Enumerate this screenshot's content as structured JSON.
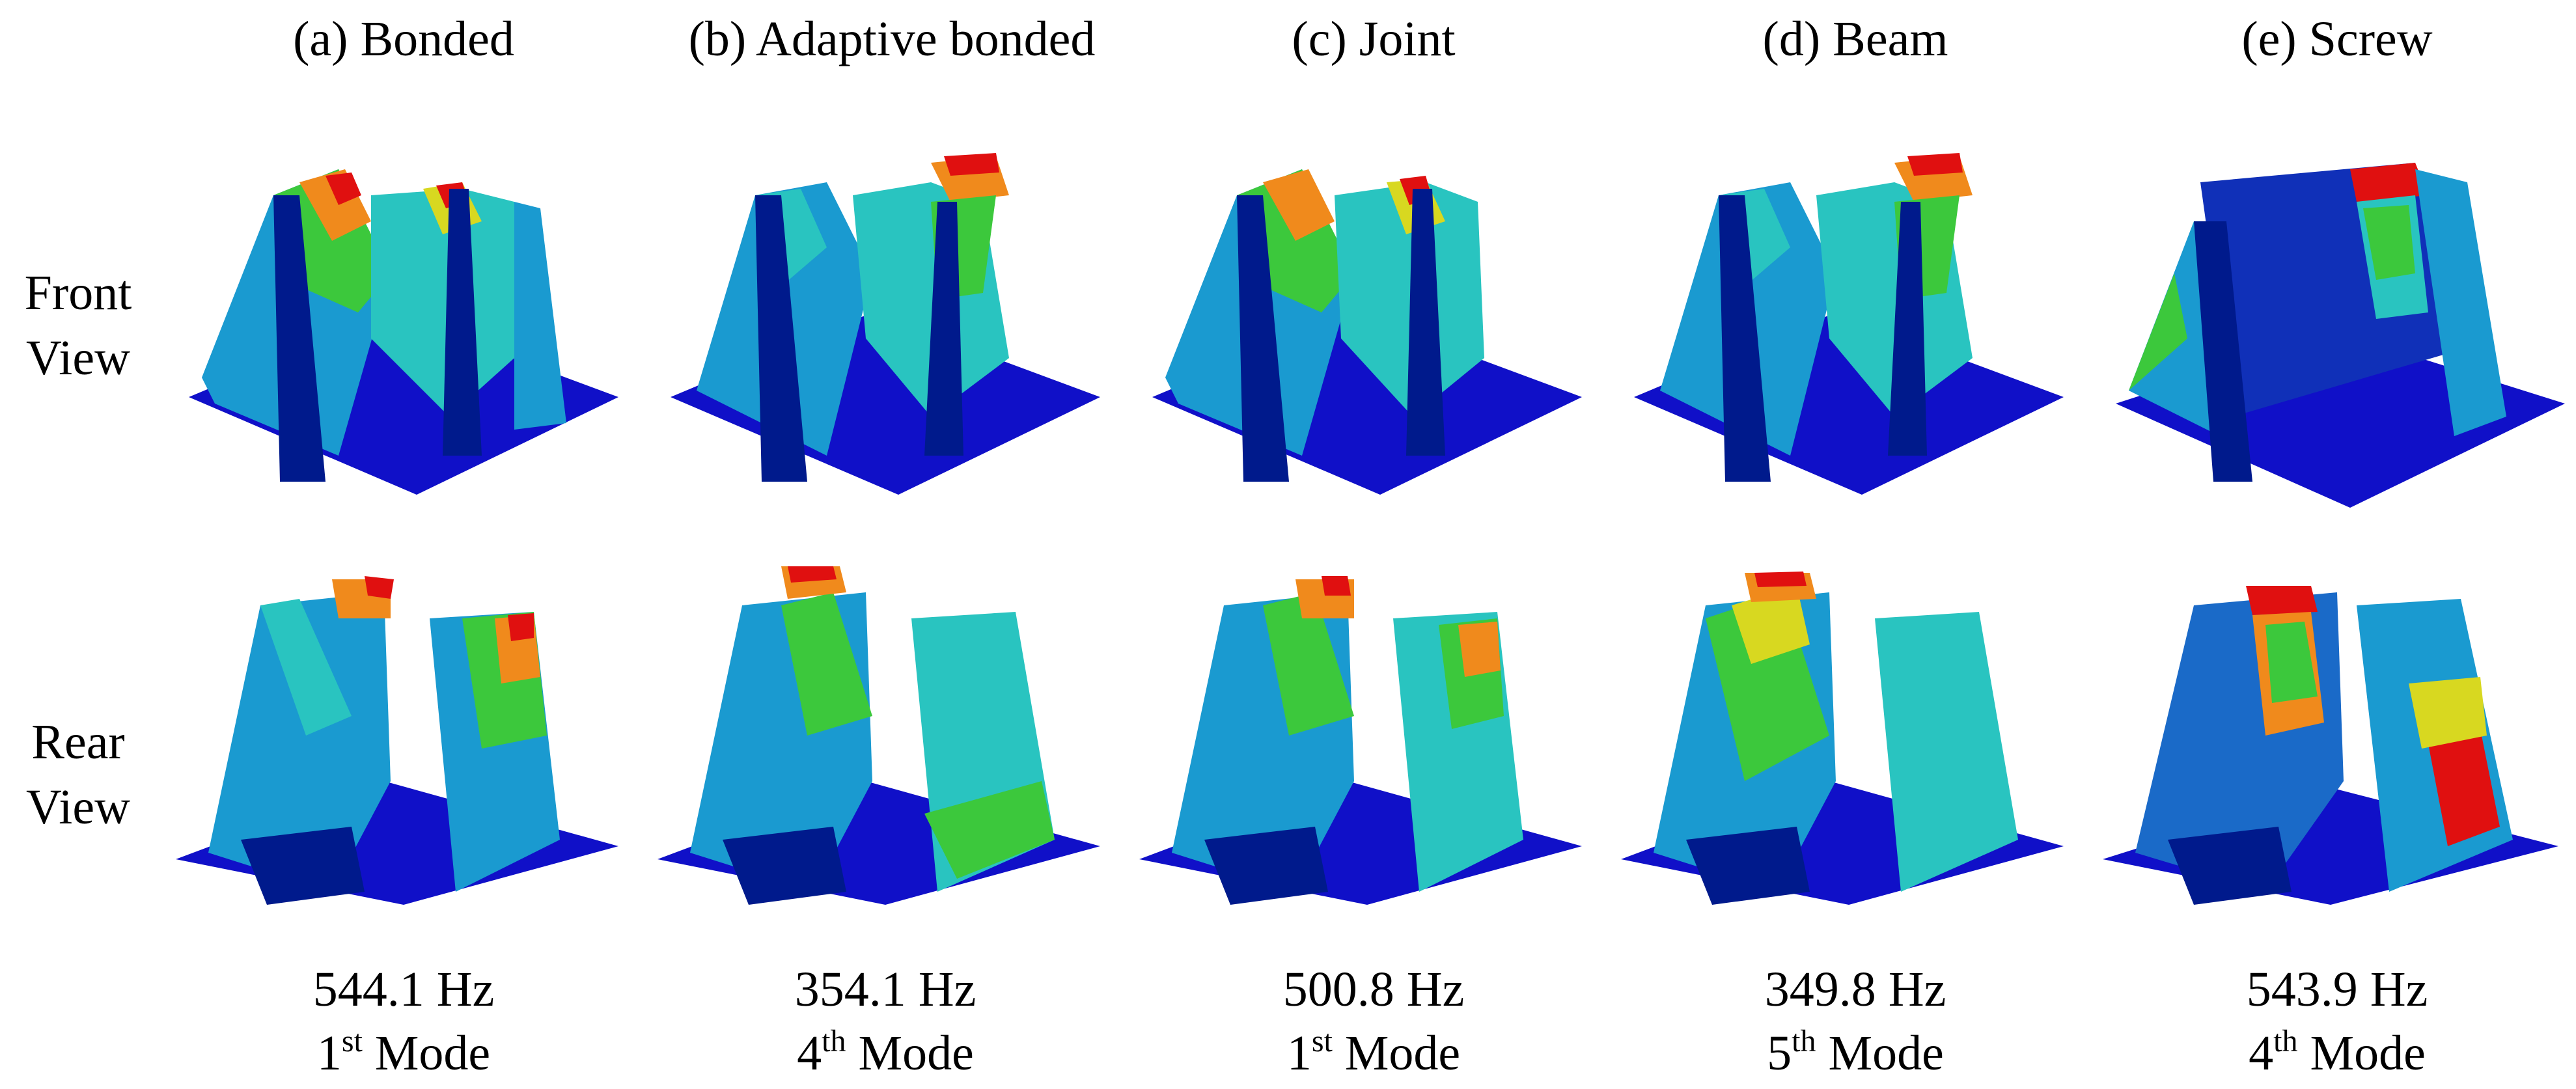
{
  "columns": [
    {
      "title": "(a) Bonded",
      "freq": "544.1 Hz",
      "mode_num": "1",
      "mode_suffix": "st",
      "mode_word": "Mode"
    },
    {
      "title": "(b) Adaptive bonded",
      "freq": "354.1 Hz",
      "mode_num": "4",
      "mode_suffix": "th",
      "mode_word": "Mode"
    },
    {
      "title": "(c) Joint",
      "freq": "500.8 Hz",
      "mode_num": "1",
      "mode_suffix": "st",
      "mode_word": "Mode"
    },
    {
      "title": "(d) Beam",
      "freq": "349.8 Hz",
      "mode_num": "5",
      "mode_suffix": "th",
      "mode_word": "Mode"
    },
    {
      "title": "(e) Screw",
      "freq": "543.9 Hz",
      "mode_num": "4",
      "mode_suffix": "th",
      "mode_word": "Mode"
    }
  ],
  "rows": {
    "front": {
      "line1": "Front",
      "line2": "View"
    },
    "rear": {
      "line1": "Rear",
      "line2": "View"
    }
  },
  "colors": {
    "base": "#1010c8",
    "dark": "#001a8c",
    "mid": "#1a9ad0",
    "cyan": "#29c4c0",
    "green": "#3cc83c",
    "yellow": "#d8d820",
    "orange": "#f08a1c",
    "red": "#e01010"
  }
}
